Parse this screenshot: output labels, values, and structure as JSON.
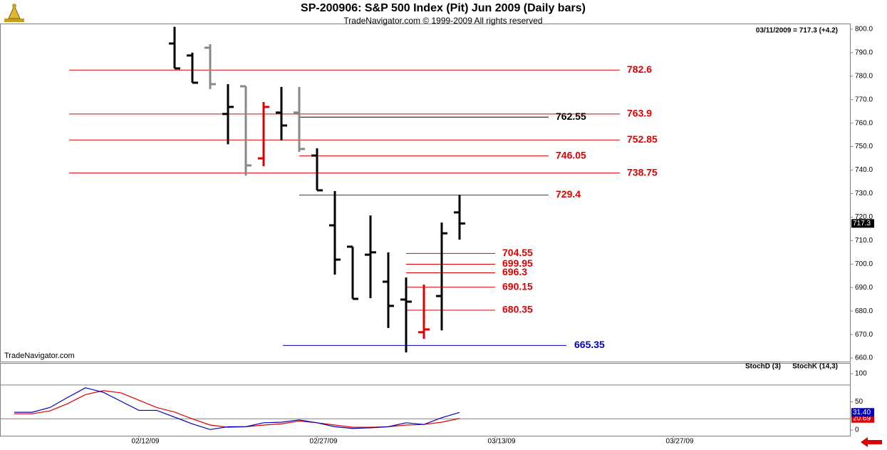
{
  "chart_data": [
    {
      "type": "ohlc",
      "title": "SP-200906:  S&P 500 Index (Pit) Jun 2009  (Daily bars)",
      "subtitle": "TradeNavigator.com © 1999-2009 All rights reserved",
      "annotation": "03/11/2009 = 717.3 (+4.2)",
      "watermark": "TradeNavigator.com",
      "x": [
        2,
        3,
        4,
        5,
        6,
        7,
        8,
        9,
        10,
        11,
        12,
        13,
        14,
        15,
        16,
        17,
        18
      ],
      "open": [
        793.9,
        788.8,
        792.1,
        763.9,
        775.7,
        745.0,
        764.5,
        764.5,
        746.2,
        716.5,
        707.4,
        704.0,
        692.5,
        684.9,
        671.0,
        686.4,
        722.0
      ],
      "high": [
        801.0,
        790.0,
        793.6,
        776.6,
        775.7,
        769.0,
        775.4,
        775.4,
        749.3,
        731.1,
        707.4,
        720.7,
        705.0,
        694.3,
        691.3,
        717.7,
        729.5
      ],
      "low": [
        783.3,
        777.2,
        774.5,
        751.0,
        737.7,
        741.7,
        752.6,
        747.8,
        731.4,
        695.5,
        685.2,
        685.5,
        672.8,
        662.4,
        668.2,
        671.8,
        710.4
      ],
      "close": [
        783.3,
        777.2,
        776.6,
        766.9,
        742.0,
        766.9,
        759.0,
        749.0,
        731.4,
        701.9,
        685.2,
        705.0,
        682.2,
        684.0,
        672.2,
        713.1,
        717.3
      ],
      "colors": [
        "#000000",
        "#000000",
        "#888888",
        "#000000",
        "#888888",
        "#e00000",
        "#000000",
        "#888888",
        "#000000",
        "#000000",
        "#000000",
        "#000000",
        "#000000",
        "#000000",
        "#e00000",
        "#000000",
        "#000000"
      ],
      "levels": [
        {
          "value": 782.6,
          "color": "#e00000"
        },
        {
          "value": 763.9,
          "color": "#e00000"
        },
        {
          "value": 752.85,
          "color": "#e00000"
        },
        {
          "value": 738.75,
          "color": "#e00000"
        },
        {
          "value": 762.55,
          "color": "#000000"
        },
        {
          "value": 746.05,
          "color": "#e00000"
        },
        {
          "value": 729.4,
          "color": "#e00000"
        },
        {
          "value": 704.55,
          "color": "#e00000"
        },
        {
          "value": 699.95,
          "color": "#e00000"
        },
        {
          "value": 696.3,
          "color": "#e00000"
        },
        {
          "value": 690.15,
          "color": "#e00000"
        },
        {
          "value": 680.35,
          "color": "#e00000"
        },
        {
          "value": 665.35,
          "color": "#0000c0"
        }
      ],
      "xlim": [
        -7.8,
        39.92
      ],
      "ylim": [
        658.5,
        802.4
      ],
      "yticks": [
        {
          "value": 660,
          "label": "660.0"
        },
        {
          "value": 670,
          "label": "670.0"
        },
        {
          "value": 680,
          "label": "680.0"
        },
        {
          "value": 690,
          "label": "690.0"
        },
        {
          "value": 700,
          "label": "700.0"
        },
        {
          "value": 710,
          "label": "710.0"
        },
        {
          "value": 720,
          "label": "720.0"
        },
        {
          "value": 730,
          "label": "730.0"
        },
        {
          "value": 740,
          "label": "740.0"
        },
        {
          "value": 750,
          "label": "750.0"
        },
        {
          "value": 760,
          "label": "760.0"
        },
        {
          "value": 770,
          "label": "770.0"
        },
        {
          "value": 780,
          "label": "780.0"
        },
        {
          "value": 790,
          "label": "790.0"
        },
        {
          "value": 800,
          "label": "800.0"
        }
      ]
    },
    {
      "type": "line",
      "x": [
        -7,
        -6,
        -5,
        -4,
        -3,
        -2,
        -1,
        0,
        1,
        2,
        3,
        4,
        5,
        6,
        7,
        8,
        9,
        10,
        11,
        12,
        13,
        14,
        15,
        16,
        17,
        18
      ],
      "series": [
        {
          "name": "StochD (3)",
          "color": "#e00000",
          "values": [
            29,
            29,
            34,
            47,
            63,
            70,
            66,
            53,
            40,
            32,
            20,
            9,
            5,
            6,
            9,
            11,
            16,
            13,
            9,
            5,
            5,
            6,
            9,
            10,
            14,
            20.69
          ],
          "value_labels": [
            null,
            null,
            null,
            null,
            null,
            null,
            null,
            null,
            null,
            null,
            null,
            null,
            null,
            null,
            null,
            null,
            null,
            null,
            null,
            null,
            null,
            null,
            null,
            null,
            null,
            "20.69"
          ]
        },
        {
          "name": "StochK (14,3)",
          "color": "#0000c0",
          "values": [
            31.6,
            31.6,
            40,
            58,
            75,
            67,
            51,
            35,
            35,
            23,
            11,
            1,
            6,
            6,
            13,
            14,
            18,
            13,
            6,
            3,
            4,
            6,
            13,
            10,
            22,
            31.4
          ],
          "value_labels": [
            null,
            null,
            null,
            null,
            null,
            null,
            null,
            null,
            null,
            null,
            null,
            null,
            null,
            null,
            null,
            null,
            null,
            null,
            null,
            null,
            null,
            null,
            null,
            null,
            null,
            "31.40"
          ]
        }
      ],
      "hlines": [
        80,
        20
      ],
      "xlim": [
        -7.8,
        39.92
      ],
      "ylim": [
        -10,
        119
      ],
      "yticks": [
        0,
        50,
        100
      ],
      "xticks": [
        {
          "value": 0,
          "label": "02/12/09"
        },
        {
          "value": 10,
          "label": "02/27/09"
        },
        {
          "value": 20,
          "label": "03/13/09"
        },
        {
          "value": 30,
          "label": "03/27/09"
        }
      ]
    }
  ]
}
